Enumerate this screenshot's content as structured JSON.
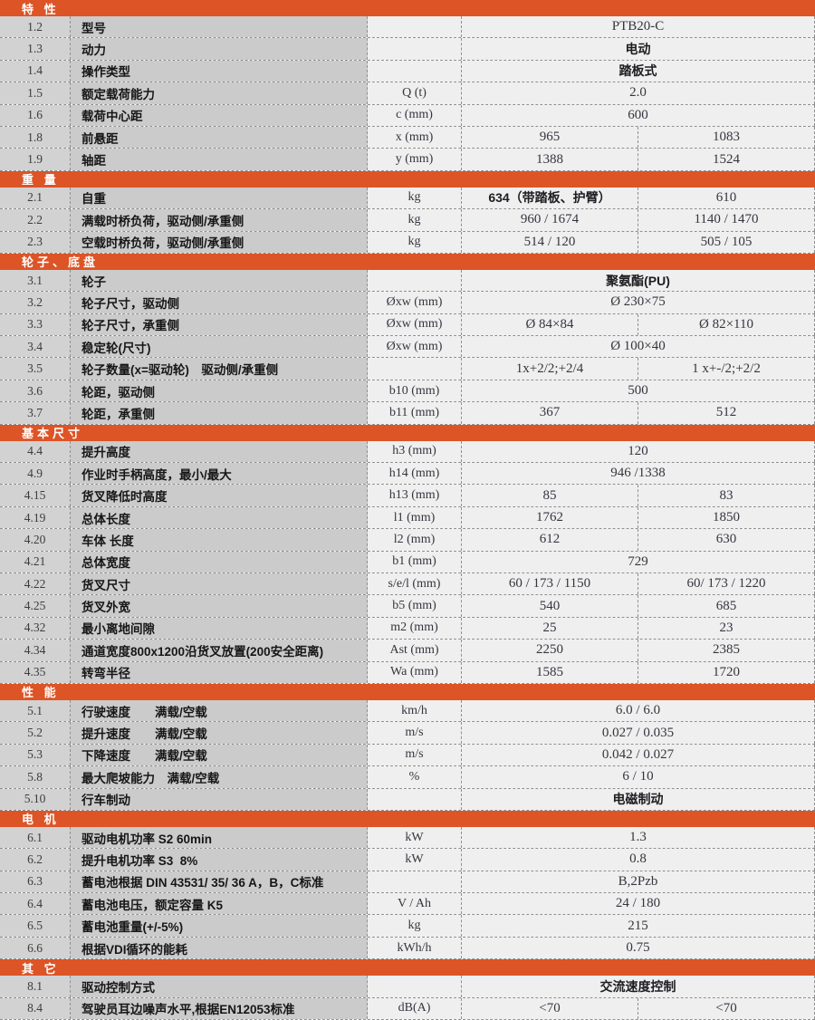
{
  "document_type": "forklift-specification-sheet",
  "colors": {
    "accent_orange": "#dd5426",
    "left_columns_bg": "#cccccc",
    "right_columns_bg": "#efefef",
    "dashed_line": "#8f8f8f",
    "header_text": "#ffffff"
  },
  "table": {
    "sections": [
      {
        "title": "特 性",
        "rows": [
          {
            "no": "1.2",
            "desc": "型号",
            "unit": "",
            "values": [
              "PTB20-C"
            ]
          },
          {
            "no": "1.3",
            "desc": "动力",
            "unit": "",
            "values": [
              "电动"
            ]
          },
          {
            "no": "1.4",
            "desc": "操作类型",
            "unit": "",
            "values": [
              "踏板式"
            ]
          },
          {
            "no": "1.5",
            "desc": "额定载荷能力",
            "unit": "Q (t)",
            "values": [
              "2.0"
            ]
          },
          {
            "no": "1.6",
            "desc": "载荷中心距",
            "unit": "c (mm)",
            "values": [
              "600"
            ]
          },
          {
            "no": "1.8",
            "desc": "前悬距",
            "unit": "x (mm)",
            "values": [
              "965",
              "1083"
            ]
          },
          {
            "no": "1.9",
            "desc": "轴距",
            "unit": "y (mm)",
            "values": [
              "1388",
              "1524"
            ]
          }
        ]
      },
      {
        "title": "重 量",
        "rows": [
          {
            "no": "2.1",
            "desc": "自重",
            "unit": "kg",
            "values": [
              "634（带踏板、护臂）",
              "610"
            ]
          },
          {
            "no": "2.2",
            "desc": "满载时桥负荷，驱动侧/承重侧",
            "unit": "kg",
            "values": [
              "960 / 1674",
              "1140 / 1470"
            ]
          },
          {
            "no": "2.3",
            "desc": "空载时桥负荷，驱动侧/承重侧",
            "unit": "kg",
            "values": [
              "514 / 120",
              "505 / 105"
            ]
          }
        ]
      },
      {
        "title": "轮子、底盘",
        "rows": [
          {
            "no": "3.1",
            "desc": "轮子",
            "unit": "",
            "values": [
              "聚氨酯(PU)"
            ]
          },
          {
            "no": "3.2",
            "desc": "轮子尺寸，驱动侧",
            "unit": "Øxw (mm)",
            "values": [
              "Ø 230×75"
            ]
          },
          {
            "no": "3.3",
            "desc": "轮子尺寸，承重侧",
            "unit": "Øxw (mm)",
            "values": [
              "Ø 84×84",
              "Ø 82×110"
            ]
          },
          {
            "no": "3.4",
            "desc": "稳定轮(尺寸)",
            "unit": "Øxw (mm)",
            "values": [
              "Ø 100×40"
            ]
          },
          {
            "no": "3.5",
            "desc": "轮子数量(x=驱动轮)　驱动侧/承重侧",
            "unit": "",
            "values": [
              "1x+2/2;+2/4",
              "1 x+-/2;+2/2"
            ]
          },
          {
            "no": "3.6",
            "desc": "轮距，驱动侧",
            "unit": "b10 (mm)",
            "values": [
              "500"
            ]
          },
          {
            "no": "3.7",
            "desc": "轮距，承重侧",
            "unit": "b11 (mm)",
            "values": [
              "367",
              "512"
            ]
          }
        ]
      },
      {
        "title": "基本尺寸",
        "rows": [
          {
            "no": "4.4",
            "desc": "提升高度",
            "unit": "h3 (mm)",
            "values": [
              "120"
            ]
          },
          {
            "no": "4.9",
            "desc": "作业时手柄高度，最小/最大",
            "unit": "h14 (mm)",
            "values": [
              "946 /1338"
            ]
          },
          {
            "no": "4.15",
            "desc": "货叉降低时高度",
            "unit": "h13 (mm)",
            "values": [
              "85",
              "83"
            ]
          },
          {
            "no": "4.19",
            "desc": "总体长度",
            "unit": "l1 (mm)",
            "values": [
              "1762",
              "1850"
            ]
          },
          {
            "no": "4.20",
            "desc": "车体 长度",
            "unit": "l2 (mm)",
            "values": [
              "612",
              "630"
            ]
          },
          {
            "no": "4.21",
            "desc": "总体宽度",
            "unit": "b1 (mm)",
            "values": [
              "729"
            ]
          },
          {
            "no": "4.22",
            "desc": "货叉尺寸",
            "unit": "s/e/l (mm)",
            "values": [
              "60 / 173 / 1150",
              "60/ 173 / 1220"
            ]
          },
          {
            "no": "4.25",
            "desc": "货叉外宽",
            "unit": "b5 (mm)",
            "values": [
              "540",
              "685"
            ]
          },
          {
            "no": "4.32",
            "desc": "最小离地间隙",
            "unit": "m2 (mm)",
            "values": [
              "25",
              "23"
            ]
          },
          {
            "no": "4.34",
            "desc": "通道宽度800x1200沿货叉放置(200安全距离)",
            "unit": "Ast (mm)",
            "values": [
              "2250",
              "2385"
            ]
          },
          {
            "no": "4.35",
            "desc": "转弯半径",
            "unit": "Wa (mm)",
            "values": [
              "1585",
              "1720"
            ]
          }
        ]
      },
      {
        "title": "性 能",
        "rows": [
          {
            "no": "5.1",
            "desc": "行驶速度　　满载/空载",
            "unit": "km/h",
            "values": [
              "6.0 / 6.0"
            ]
          },
          {
            "no": "5.2",
            "desc": "提升速度　　满载/空载",
            "unit": "m/s",
            "values": [
              "0.027 / 0.035"
            ]
          },
          {
            "no": "5.3",
            "desc": "下降速度　　满载/空载",
            "unit": "m/s",
            "values": [
              "0.042 / 0.027"
            ]
          },
          {
            "no": "5.8",
            "desc": "最大爬坡能力　满载/空载",
            "unit": "%",
            "values": [
              "6 / 10"
            ]
          },
          {
            "no": "5.10",
            "desc": "行车制动",
            "unit": "",
            "values": [
              "电磁制动"
            ]
          }
        ]
      },
      {
        "title": "电 机",
        "rows": [
          {
            "no": "6.1",
            "desc": "驱动电机功率 S2 60min",
            "unit": "kW",
            "values": [
              "1.3"
            ]
          },
          {
            "no": "6.2",
            "desc": "提升电机功率 S3  8%",
            "unit": "kW",
            "values": [
              "0.8"
            ]
          },
          {
            "no": "6.3",
            "desc": "蓄电池根据 DIN 43531/ 35/ 36 A，B，C标准",
            "unit": "",
            "values": [
              "B,2Pzb"
            ]
          },
          {
            "no": "6.4",
            "desc": "蓄电池电压，额定容量 K5",
            "unit": "V / Ah",
            "values": [
              "24 / 180"
            ]
          },
          {
            "no": "6.5",
            "desc": "蓄电池重量(+/-5%)",
            "unit": "kg",
            "values": [
              "215"
            ]
          },
          {
            "no": "6.6",
            "desc": "根据VDI循环的能耗",
            "unit": "kWh/h",
            "values": [
              "0.75"
            ]
          }
        ]
      },
      {
        "title": "其 它",
        "rows": [
          {
            "no": "8.1",
            "desc": "驱动控制方式",
            "unit": "",
            "values": [
              "交流速度控制"
            ]
          },
          {
            "no": "8.4",
            "desc": "驾驶员耳边噪声水平,根据EN12053标准",
            "unit": "dB(A)",
            "values": [
              "<70",
              "<70"
            ]
          }
        ]
      }
    ]
  }
}
